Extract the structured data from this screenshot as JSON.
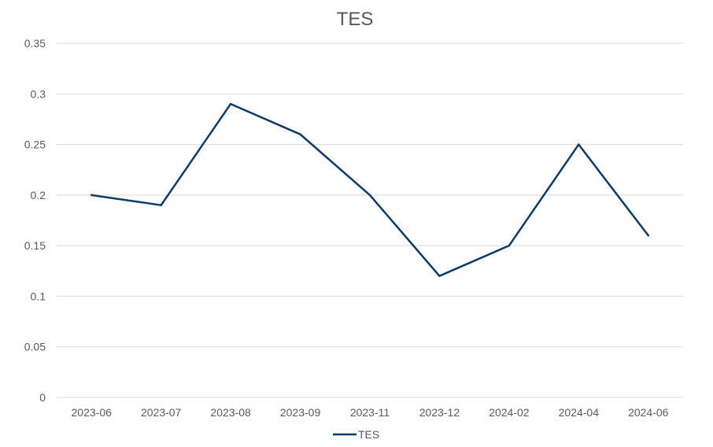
{
  "chart_data": {
    "type": "line",
    "title": "TES",
    "xlabel": "",
    "ylabel": "",
    "categories": [
      "2023-06",
      "2023-07",
      "2023-08",
      "2023-09",
      "2023-11",
      "2023-12",
      "2024-02",
      "2024-04",
      "2024-06"
    ],
    "series": [
      {
        "name": "TES",
        "values": [
          0.2,
          0.19,
          0.29,
          0.26,
          0.2,
          0.12,
          0.15,
          0.25,
          0.16
        ],
        "color": "#0e3a63"
      }
    ],
    "ylim": [
      0,
      0.35
    ],
    "yticks": [
      "0",
      "0.05",
      "0.1",
      "0.15",
      "0.2",
      "0.25",
      "0.3",
      "0.35"
    ],
    "grid": true,
    "legend_position": "bottom"
  }
}
